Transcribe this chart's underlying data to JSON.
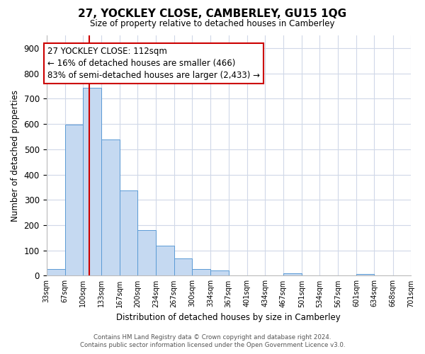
{
  "title": "27, YOCKLEY CLOSE, CAMBERLEY, GU15 1QG",
  "subtitle": "Size of property relative to detached houses in Camberley",
  "xlabel": "Distribution of detached houses by size in Camberley",
  "ylabel": "Number of detached properties",
  "bar_values": [
    27,
    596,
    743,
    538,
    337,
    180,
    120,
    67,
    26,
    20,
    0,
    0,
    0,
    10,
    0,
    0,
    0,
    8,
    0,
    0
  ],
  "bin_edges": [
    33,
    67,
    100,
    133,
    167,
    200,
    234,
    267,
    300,
    334,
    367,
    401,
    434,
    467,
    501,
    534,
    567,
    601,
    634,
    668,
    701
  ],
  "tick_labels": [
    "33sqm",
    "67sqm",
    "100sqm",
    "133sqm",
    "167sqm",
    "200sqm",
    "234sqm",
    "267sqm",
    "300sqm",
    "334sqm",
    "367sqm",
    "401sqm",
    "434sqm",
    "467sqm",
    "501sqm",
    "534sqm",
    "567sqm",
    "601sqm",
    "634sqm",
    "668sqm",
    "701sqm"
  ],
  "bar_color": "#c5d9f1",
  "bar_edge_color": "#5b9bd5",
  "vline_x": 112,
  "vline_color": "#cc0000",
  "ylim": [
    0,
    950
  ],
  "yticks": [
    0,
    100,
    200,
    300,
    400,
    500,
    600,
    700,
    800,
    900
  ],
  "annotation_title": "27 YOCKLEY CLOSE: 112sqm",
  "annotation_line1": "← 16% of detached houses are smaller (466)",
  "annotation_line2": "83% of semi-detached houses are larger (2,433) →",
  "annotation_box_color": "#ffffff",
  "annotation_box_edge": "#cc0000",
  "footer_line1": "Contains HM Land Registry data © Crown copyright and database right 2024.",
  "footer_line2": "Contains public sector information licensed under the Open Government Licence v3.0.",
  "bg_color": "#ffffff",
  "grid_color": "#d0d8e8"
}
